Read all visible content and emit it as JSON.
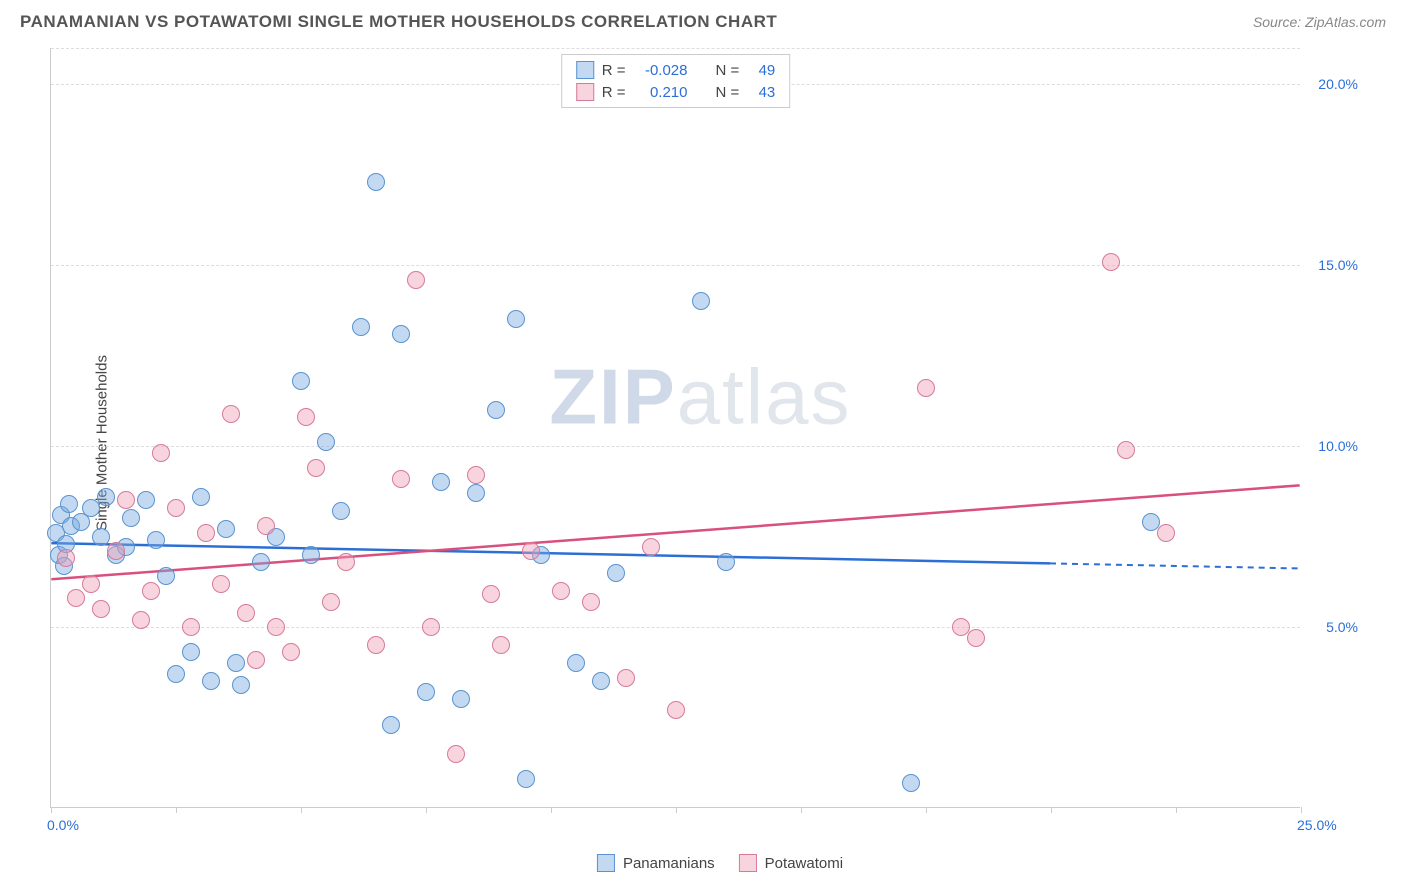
{
  "title": "PANAMANIAN VS POTAWATOMI SINGLE MOTHER HOUSEHOLDS CORRELATION CHART",
  "source_prefix": "Source: ",
  "source": "ZipAtlas.com",
  "ylabel": "Single Mother Households",
  "watermark": "ZIPatlas",
  "chart": {
    "type": "scatter",
    "xlim": [
      0,
      25
    ],
    "ylim": [
      0,
      21
    ],
    "x_ticks": [
      0,
      2.5,
      5,
      7.5,
      10,
      12.5,
      15,
      17.5,
      20,
      22.5,
      25
    ],
    "x_tick_labels": {
      "0": "0.0%",
      "25": "25.0%"
    },
    "y_grid": [
      5,
      10,
      15,
      20
    ],
    "y_grid_labels": {
      "5": "5.0%",
      "10": "10.0%",
      "15": "15.0%",
      "20": "20.0%"
    },
    "background_color": "#ffffff",
    "grid_color": "#dddddd",
    "axis_color": "#cccccc",
    "tick_label_color": "#2b6fd6",
    "marker_radius": 9,
    "series": [
      {
        "name": "Panamanians",
        "fill": "rgba(120,170,225,0.45)",
        "stroke": "#5a93cf",
        "line_color": "#2b6fd6",
        "line_dash_after_x": 20,
        "R": "-0.028",
        "N": "49",
        "trend": {
          "x1": 0,
          "y1": 7.3,
          "x2": 25,
          "y2": 6.6
        },
        "points": [
          [
            0.1,
            7.6
          ],
          [
            0.15,
            7.0
          ],
          [
            0.2,
            8.1
          ],
          [
            0.25,
            6.7
          ],
          [
            0.3,
            7.3
          ],
          [
            0.35,
            8.4
          ],
          [
            0.4,
            7.8
          ],
          [
            0.6,
            7.9
          ],
          [
            0.8,
            8.3
          ],
          [
            1.0,
            7.5
          ],
          [
            1.1,
            8.6
          ],
          [
            1.3,
            7.0
          ],
          [
            1.5,
            7.2
          ],
          [
            1.6,
            8.0
          ],
          [
            1.9,
            8.5
          ],
          [
            2.1,
            7.4
          ],
          [
            2.3,
            6.4
          ],
          [
            2.5,
            3.7
          ],
          [
            2.8,
            4.3
          ],
          [
            3.0,
            8.6
          ],
          [
            3.2,
            3.5
          ],
          [
            3.5,
            7.7
          ],
          [
            3.7,
            4.0
          ],
          [
            3.8,
            3.4
          ],
          [
            4.2,
            6.8
          ],
          [
            4.5,
            7.5
          ],
          [
            5.0,
            11.8
          ],
          [
            5.2,
            7.0
          ],
          [
            5.5,
            10.1
          ],
          [
            5.8,
            8.2
          ],
          [
            6.2,
            13.3
          ],
          [
            6.5,
            17.3
          ],
          [
            6.8,
            2.3
          ],
          [
            7.0,
            13.1
          ],
          [
            7.5,
            3.2
          ],
          [
            7.8,
            9.0
          ],
          [
            8.2,
            3.0
          ],
          [
            8.5,
            8.7
          ],
          [
            8.9,
            11.0
          ],
          [
            9.3,
            13.5
          ],
          [
            9.5,
            0.8
          ],
          [
            9.8,
            7.0
          ],
          [
            10.5,
            4.0
          ],
          [
            11.0,
            3.5
          ],
          [
            11.3,
            6.5
          ],
          [
            13.0,
            14.0
          ],
          [
            13.5,
            6.8
          ],
          [
            17.2,
            0.7
          ],
          [
            22.0,
            7.9
          ]
        ]
      },
      {
        "name": "Potawatomi",
        "fill": "rgba(240,160,185,0.45)",
        "stroke": "#d67a9a",
        "line_color": "#d94f7e",
        "line_dash_after_x": null,
        "R": "0.210",
        "N": "43",
        "trend": {
          "x1": 0,
          "y1": 6.3,
          "x2": 25,
          "y2": 8.9
        },
        "points": [
          [
            0.3,
            6.9
          ],
          [
            0.5,
            5.8
          ],
          [
            0.8,
            6.2
          ],
          [
            1.0,
            5.5
          ],
          [
            1.3,
            7.1
          ],
          [
            1.5,
            8.5
          ],
          [
            1.8,
            5.2
          ],
          [
            2.0,
            6.0
          ],
          [
            2.2,
            9.8
          ],
          [
            2.5,
            8.3
          ],
          [
            2.8,
            5.0
          ],
          [
            3.1,
            7.6
          ],
          [
            3.4,
            6.2
          ],
          [
            3.6,
            10.9
          ],
          [
            3.9,
            5.4
          ],
          [
            4.1,
            4.1
          ],
          [
            4.3,
            7.8
          ],
          [
            4.5,
            5.0
          ],
          [
            4.8,
            4.3
          ],
          [
            5.1,
            10.8
          ],
          [
            5.3,
            9.4
          ],
          [
            5.6,
            5.7
          ],
          [
            5.9,
            6.8
          ],
          [
            6.5,
            4.5
          ],
          [
            7.0,
            9.1
          ],
          [
            7.3,
            14.6
          ],
          [
            7.6,
            5.0
          ],
          [
            8.1,
            1.5
          ],
          [
            8.5,
            9.2
          ],
          [
            8.8,
            5.9
          ],
          [
            9.0,
            4.5
          ],
          [
            9.6,
            7.1
          ],
          [
            10.2,
            6.0
          ],
          [
            10.8,
            5.7
          ],
          [
            11.5,
            3.6
          ],
          [
            12.0,
            7.2
          ],
          [
            12.5,
            2.7
          ],
          [
            17.5,
            11.6
          ],
          [
            18.2,
            5.0
          ],
          [
            18.5,
            4.7
          ],
          [
            21.2,
            15.1
          ],
          [
            21.5,
            9.9
          ],
          [
            22.3,
            7.6
          ]
        ]
      }
    ]
  },
  "legend_top": {
    "r_label": "R =",
    "n_label": "N ="
  },
  "legend_bottom": [
    "Panamanians",
    "Potawatomi"
  ]
}
